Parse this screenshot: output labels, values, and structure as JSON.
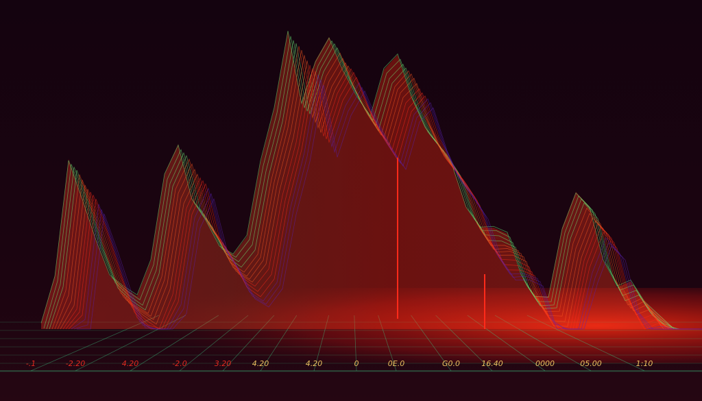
{
  "chart_data": {
    "type": "bar",
    "title": "",
    "xlabel": "",
    "ylabel": "",
    "grid": true,
    "x_tick_labels": [
      "-.1",
      "-2.20",
      "4.20",
      "-2.0",
      "3.20",
      "4.20",
      "4.20",
      "0",
      "0E.0",
      "G0.0",
      "16.40",
      "0000",
      "05.00",
      "1:10"
    ],
    "series": [
      {
        "values": [
          2,
          18,
          57,
          44,
          30,
          18,
          14,
          11,
          23,
          52,
          62,
          44,
          37,
          28,
          25,
          31,
          56,
          74,
          100,
          76,
          90,
          98,
          87,
          78,
          71,
          87,
          92,
          78,
          68,
          62,
          55,
          41,
          34,
          34,
          32,
          18,
          11,
          11,
          34,
          46,
          41,
          23,
          14,
          16,
          9,
          5,
          1
        ]
      }
    ],
    "ylim": [
      0,
      100
    ],
    "colors": {
      "background": "#12030f",
      "high": "#6cf07a",
      "mid": "#e8d060",
      "low": "#ff2a1a",
      "shadow": "#4a1aa0",
      "grid": "#3fd08a"
    }
  }
}
